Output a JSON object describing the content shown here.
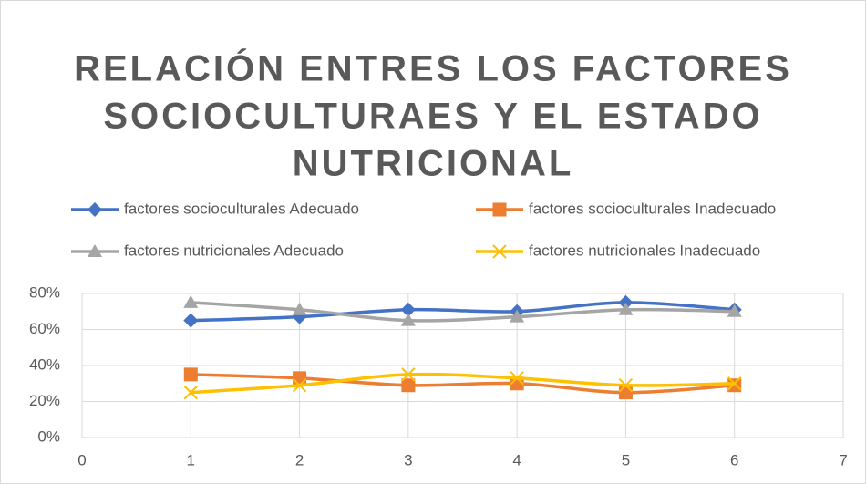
{
  "chart_data": {
    "type": "line",
    "title": [
      "RELACIÓN ENTRES LOS FACTORES",
      "SOCIOCULTURAES Y EL ESTADO",
      "NUTRICIONAL"
    ],
    "x": [
      1,
      2,
      3,
      4,
      5,
      6
    ],
    "series": [
      {
        "name": "factores socioculturales Adecuado",
        "color": "#4472c4",
        "marker": "diamond",
        "values": [
          65,
          67,
          71,
          70,
          75,
          71
        ]
      },
      {
        "name": "factores socioculturales Inadecuado",
        "color": "#ed7d31",
        "marker": "square",
        "values": [
          35,
          33,
          29,
          30,
          25,
          29
        ]
      },
      {
        "name": "factores nutricionales Adecuado",
        "color": "#a5a5a5",
        "marker": "triangle",
        "values": [
          75,
          71,
          65,
          67,
          71,
          70
        ]
      },
      {
        "name": "factores nutricionales Inadecuado",
        "color": "#ffc000",
        "marker": "x",
        "values": [
          25,
          29,
          35,
          33,
          29,
          30
        ]
      }
    ],
    "xlim": [
      0,
      7
    ],
    "xticks": [
      0,
      1,
      2,
      3,
      4,
      5,
      6,
      7
    ],
    "ylim": [
      0,
      80
    ],
    "yticks": [
      {
        "value": 0,
        "label": "0%"
      },
      {
        "value": 20,
        "label": "20%"
      },
      {
        "value": 40,
        "label": "40%"
      },
      {
        "value": 60,
        "label": "60%"
      },
      {
        "value": 80,
        "label": "80%"
      }
    ],
    "grid": true,
    "legend": "top"
  }
}
